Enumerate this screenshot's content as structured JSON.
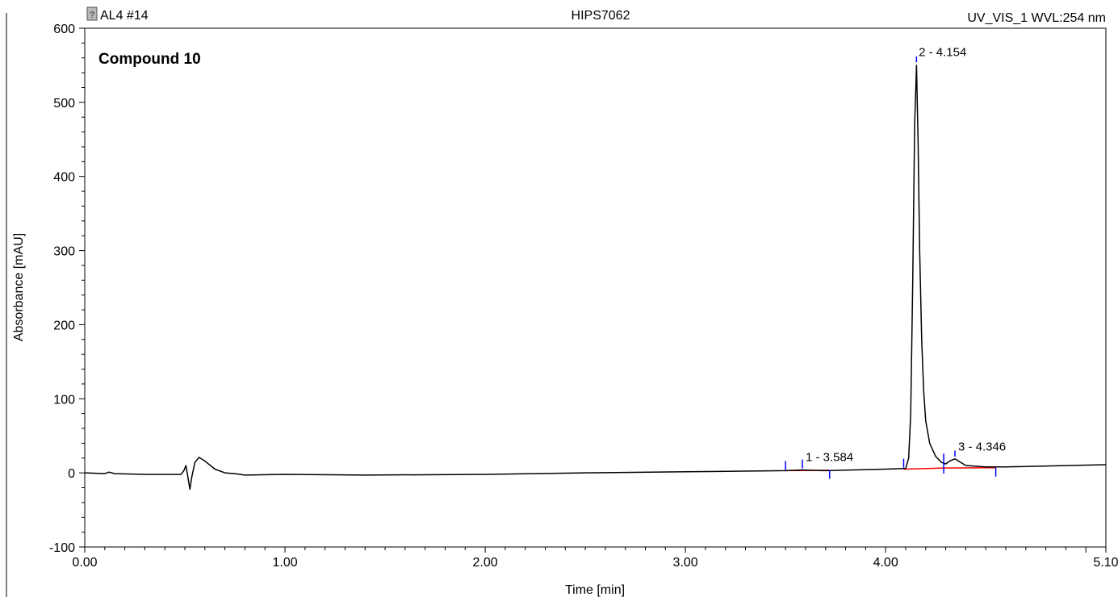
{
  "header": {
    "sample": "AL4 #14",
    "run": "HIPS7062",
    "detector": "UV_VIS_1 WVL:254 nm"
  },
  "chart_data": {
    "type": "line",
    "annotation": "Compound 10",
    "xlabel": "Time [min]",
    "ylabel": "Absorbance [mAU]",
    "xlim": [
      0,
      5.1
    ],
    "ylim": [
      -100,
      600
    ],
    "xticks": [
      "0.00",
      "1.00",
      "2.00",
      "3.00",
      "4.00",
      "5.10"
    ],
    "yticks": [
      "-100",
      "0",
      "100",
      "200",
      "300",
      "400",
      "500",
      "600"
    ],
    "series": [
      {
        "color": "#000000",
        "points": [
          [
            0.0,
            0
          ],
          [
            0.1,
            -1
          ],
          [
            0.12,
            1
          ],
          [
            0.15,
            -1
          ],
          [
            0.3,
            -2
          ],
          [
            0.48,
            -2
          ],
          [
            0.495,
            3
          ],
          [
            0.505,
            10
          ],
          [
            0.515,
            -5
          ],
          [
            0.525,
            -22
          ],
          [
            0.535,
            -5
          ],
          [
            0.55,
            14
          ],
          [
            0.57,
            21
          ],
          [
            0.6,
            16
          ],
          [
            0.65,
            5
          ],
          [
            0.7,
            0
          ],
          [
            0.75,
            -1
          ],
          [
            0.8,
            -3
          ],
          [
            1.0,
            -2
          ],
          [
            1.4,
            -3
          ],
          [
            2.0,
            -2
          ],
          [
            2.5,
            0
          ],
          [
            3.0,
            1.5
          ],
          [
            3.5,
            3
          ],
          [
            3.584,
            4
          ],
          [
            3.7,
            3
          ],
          [
            4.0,
            5
          ],
          [
            4.1,
            6
          ],
          [
            4.115,
            20
          ],
          [
            4.125,
            80
          ],
          [
            4.135,
            250
          ],
          [
            4.145,
            470
          ],
          [
            4.154,
            550
          ],
          [
            4.162,
            450
          ],
          [
            4.17,
            300
          ],
          [
            4.18,
            180
          ],
          [
            4.19,
            110
          ],
          [
            4.2,
            70
          ],
          [
            4.22,
            40
          ],
          [
            4.25,
            22
          ],
          [
            4.28,
            14
          ],
          [
            4.3,
            12
          ],
          [
            4.32,
            16
          ],
          [
            4.346,
            19
          ],
          [
            4.37,
            15
          ],
          [
            4.4,
            10
          ],
          [
            4.5,
            8
          ],
          [
            4.6,
            8
          ],
          [
            5.1,
            11
          ]
        ]
      }
    ],
    "baselines": {
      "color": "#ff0000",
      "segments": [
        [
          [
            3.5,
            3
          ],
          [
            3.72,
            3.5
          ]
        ],
        [
          [
            4.09,
            5
          ],
          [
            4.29,
            6.5
          ]
        ],
        [
          [
            4.29,
            6.5
          ],
          [
            4.55,
            7
          ]
        ]
      ]
    },
    "peak_markers": {
      "color": "#0000ff",
      "times": [
        3.5,
        3.584,
        3.72,
        4.09,
        4.154,
        4.29,
        4.346,
        4.55
      ]
    },
    "peaks": [
      {
        "label": "1 - 3.584",
        "time": 3.584,
        "height": 4
      },
      {
        "label": "2 - 4.154",
        "time": 4.154,
        "height": 550
      },
      {
        "label": "3 - 4.346",
        "time": 4.346,
        "height": 19
      }
    ]
  }
}
